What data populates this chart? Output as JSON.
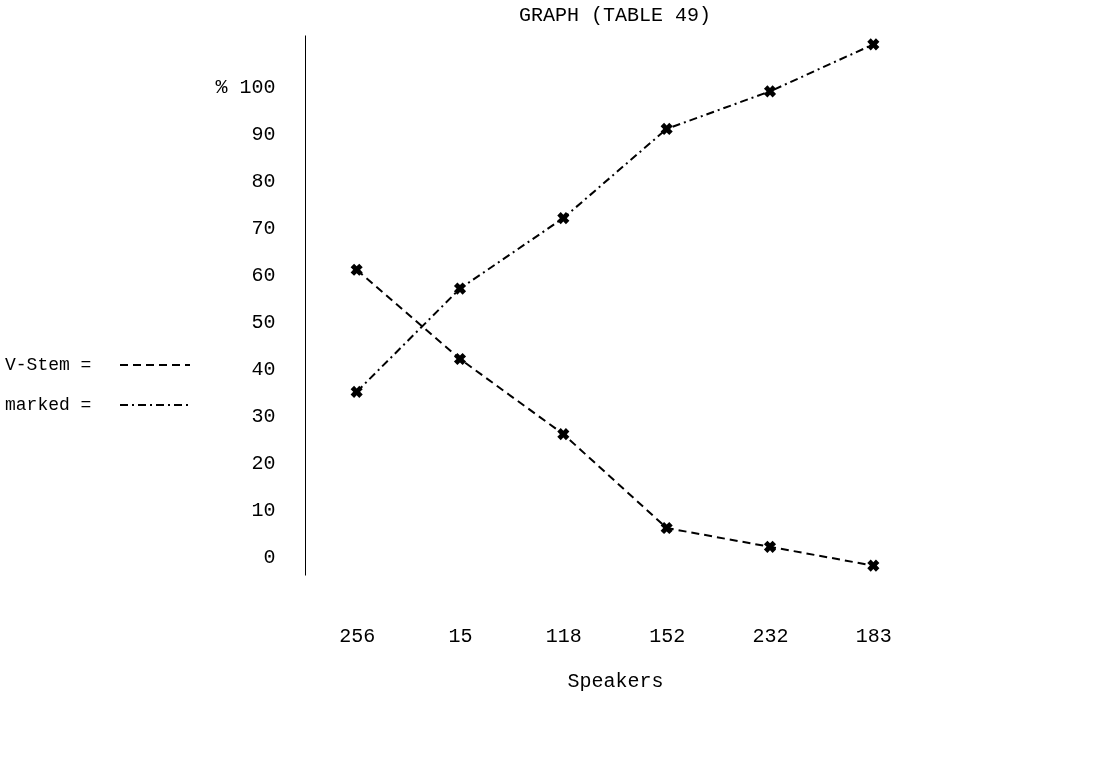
{
  "chart_data": {
    "type": "line",
    "title": "GRAPH (TABLE 49)",
    "xlabel": "Speakers",
    "categories": [
      "256",
      "15",
      "118",
      "152",
      "232",
      "183"
    ],
    "series": [
      {
        "name": "V-Stem =",
        "color": "#000000",
        "line_style": "dashed",
        "values": [
          61,
          42,
          26,
          6,
          2,
          -2
        ]
      },
      {
        "name": "marked =",
        "color": "#000000",
        "line_style": "dashdot",
        "values": [
          35,
          57,
          72,
          91,
          99,
          109
        ]
      }
    ],
    "ylim": [
      -4,
      111
    ],
    "yticks": [
      0,
      10,
      20,
      30,
      40,
      50,
      60,
      70,
      80,
      90,
      {
        "value": 100,
        "label": "% 100"
      }
    ],
    "marker": "cross",
    "grid": false,
    "legend": "left"
  }
}
